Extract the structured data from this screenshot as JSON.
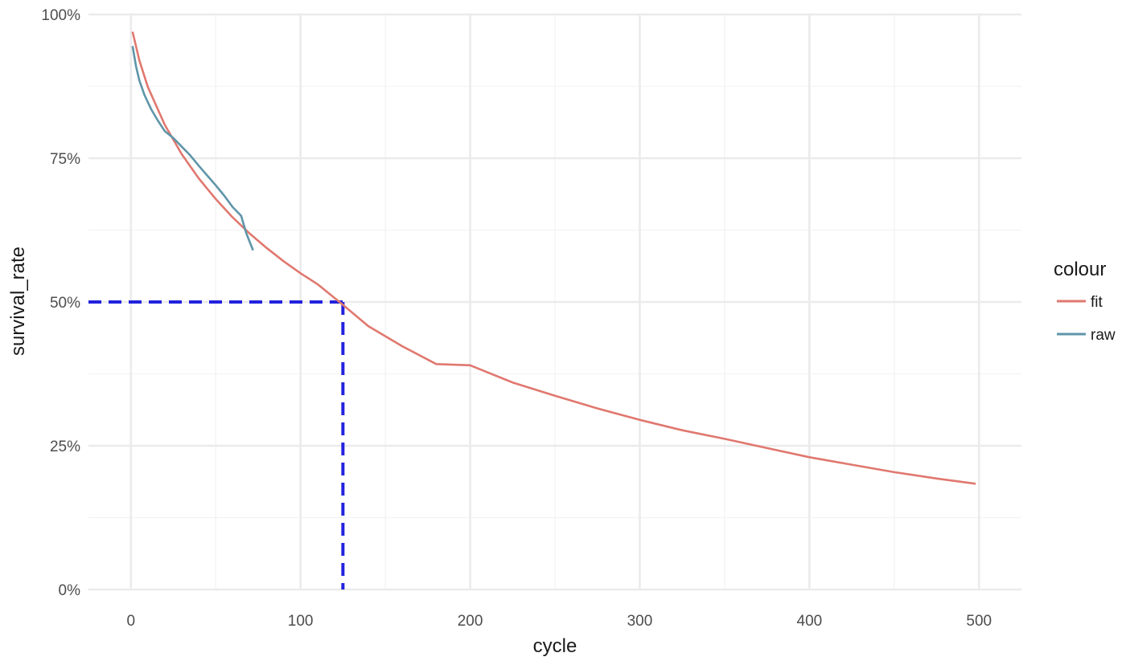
{
  "chart_data": {
    "type": "line",
    "xlabel": "cycle",
    "ylabel": "survival_rate",
    "xlim": [
      -25,
      525
    ],
    "ylim": [
      0,
      1
    ],
    "x_ticks": [
      0,
      100,
      200,
      300,
      400,
      500
    ],
    "x_tick_labels": [
      "0",
      "100",
      "200",
      "300",
      "400",
      "500"
    ],
    "y_ticks": [
      0,
      0.25,
      0.5,
      0.75,
      1.0
    ],
    "y_tick_labels": [
      "0%",
      "25%",
      "50%",
      "75%",
      "100%"
    ],
    "grid": true,
    "legend": {
      "title": "colour",
      "position": "right",
      "entries": [
        "fit",
        "raw"
      ]
    },
    "series": [
      {
        "name": "fit",
        "color": "#e0786f",
        "x": [
          1,
          5,
          10,
          20,
          30,
          40,
          50,
          60,
          70,
          80,
          90,
          100,
          110,
          123,
          140,
          160,
          180,
          200,
          225,
          250,
          275,
          300,
          325,
          350,
          375,
          400,
          425,
          450,
          475,
          498
        ],
        "y": [
          0.97,
          0.92,
          0.874,
          0.808,
          0.757,
          0.715,
          0.679,
          0.647,
          0.619,
          0.594,
          0.571,
          0.55,
          0.531,
          0.5,
          0.458,
          0.423,
          0.392,
          0.39,
          0.36,
          0.337,
          0.315,
          0.295,
          0.277,
          0.262,
          0.246,
          0.23,
          0.217,
          0.204,
          0.193,
          0.184
        ]
      },
      {
        "name": "raw",
        "color": "#5f95a8",
        "x": [
          1,
          3,
          5,
          8,
          12,
          16,
          20,
          25,
          30,
          35,
          40,
          45,
          50,
          55,
          60,
          65,
          68,
          72
        ],
        "y": [
          0.945,
          0.91,
          0.885,
          0.86,
          0.835,
          0.815,
          0.797,
          0.785,
          0.77,
          0.755,
          0.737,
          0.72,
          0.703,
          0.685,
          0.665,
          0.65,
          0.62,
          0.59
        ]
      }
    ],
    "annotation": {
      "type": "dashed-reference-lines",
      "color": "#2222dd",
      "x": 125,
      "y": 0.5
    }
  }
}
